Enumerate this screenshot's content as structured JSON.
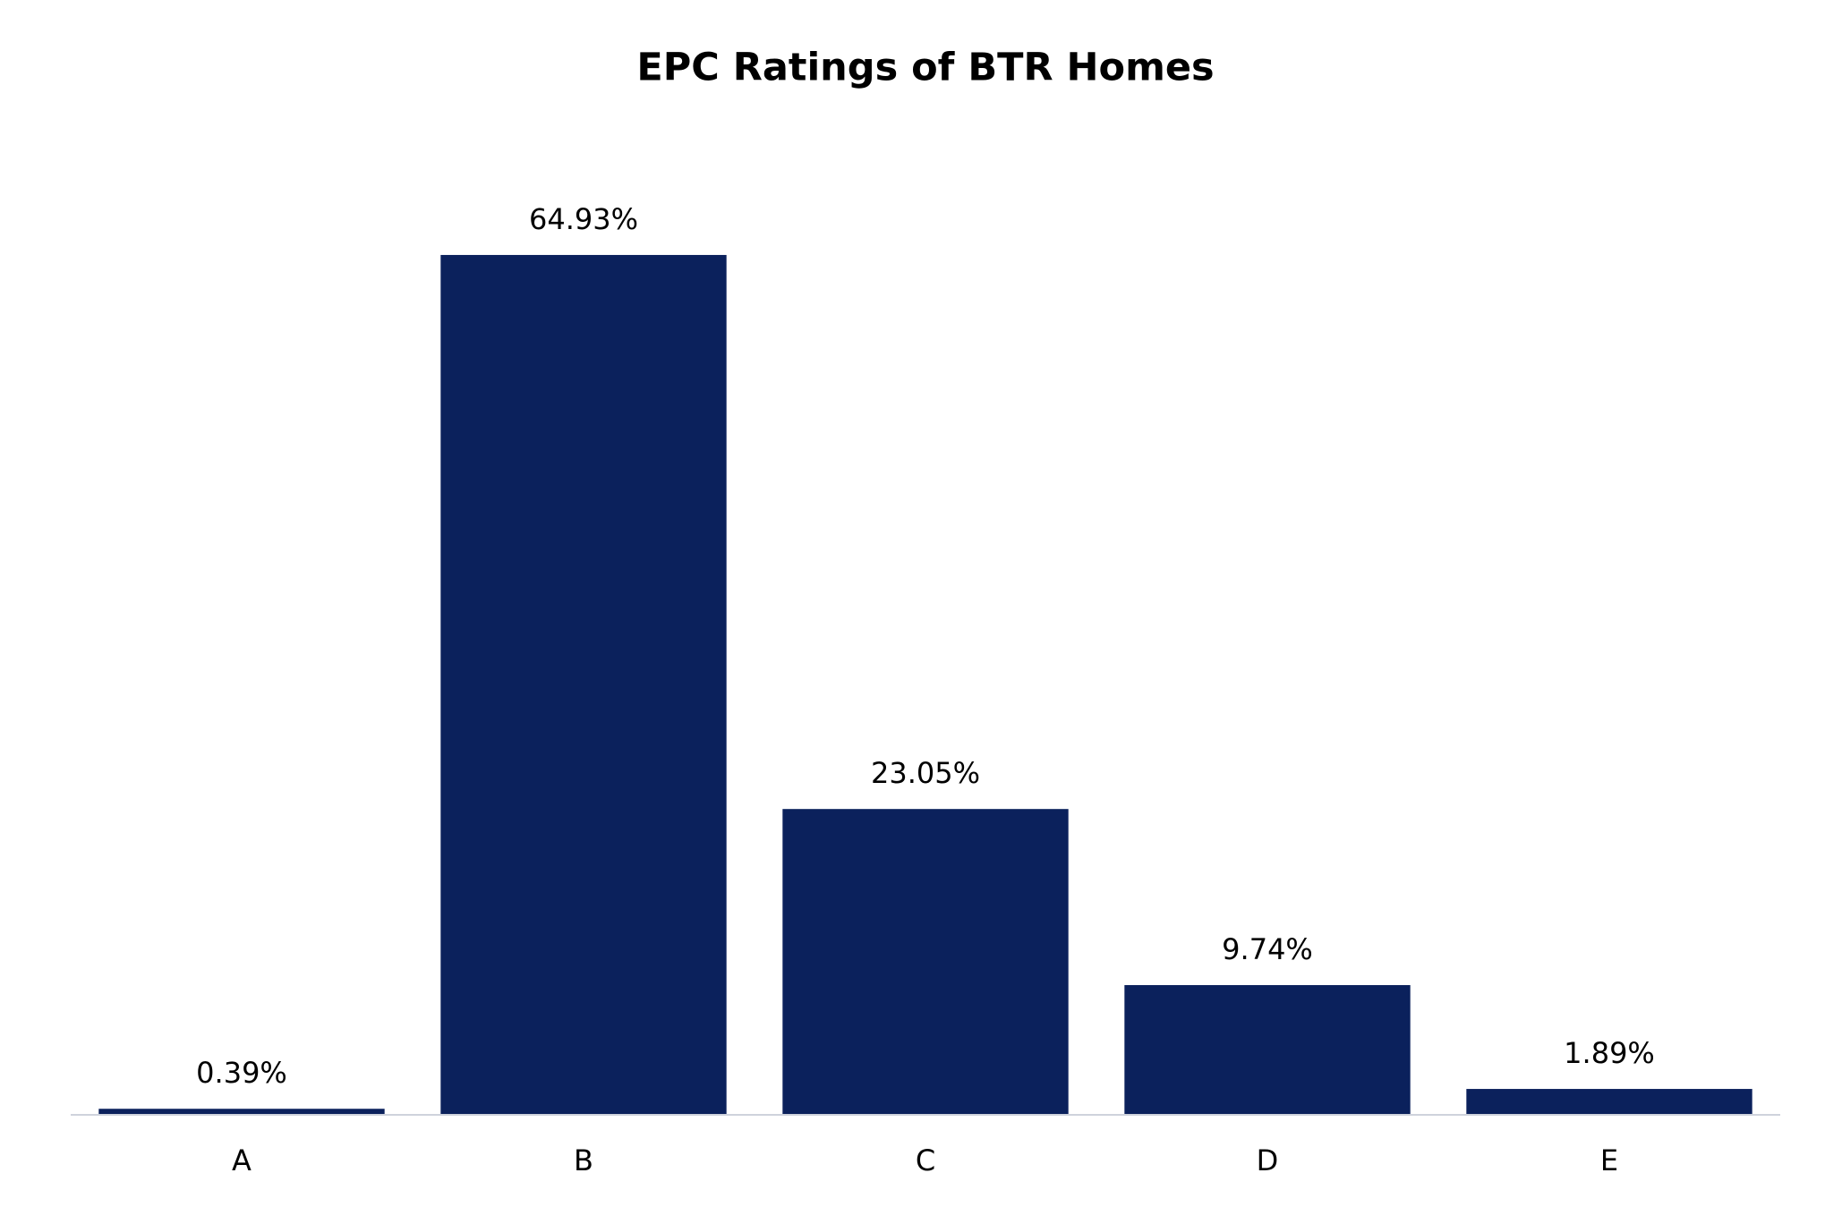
{
  "chart_data": {
    "type": "bar",
    "title": "EPC Ratings of BTR Homes",
    "categories": [
      "A",
      "B",
      "C",
      "D",
      "E"
    ],
    "values": [
      0.39,
      64.93,
      23.05,
      9.74,
      1.89
    ],
    "value_labels": [
      "0.39%",
      "64.93%",
      "23.05%",
      "9.74%",
      "1.89%"
    ],
    "color": "#0b215c",
    "ylim": [
      0,
      70
    ],
    "grid": false
  }
}
